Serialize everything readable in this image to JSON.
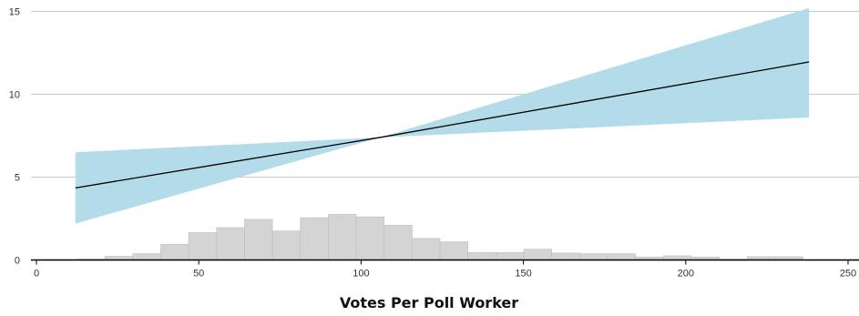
{
  "chart_data": {
    "type": "area",
    "xlabel": "Votes Per Poll Worker",
    "ylabel": "",
    "title": "",
    "xlim": [
      0,
      250
    ],
    "ylim": [
      0,
      15
    ],
    "x_ticks": [
      0,
      50,
      100,
      150,
      200,
      250
    ],
    "y_ticks": [
      0,
      5,
      10,
      15
    ],
    "grid": "horizontal",
    "colors": {
      "band": "#b3dbea",
      "line": "#000000",
      "histogram": "#d4d4d4",
      "histogram_edge": "#bdbdbd",
      "grid": "#c8c8c8",
      "axis": "#000000"
    },
    "series": [
      {
        "type": "line",
        "x": [
          12,
          106,
          238
        ],
        "y": [
          4.35,
          7.4,
          11.95
        ]
      },
      {
        "type": "band",
        "x": [
          12,
          106,
          238
        ],
        "lower": [
          2.2,
          7.4,
          8.6
        ],
        "upper": [
          6.5,
          7.4,
          15.2
        ]
      }
    ],
    "histogram": {
      "bin_width": 8.6,
      "bin_start": 12.5,
      "heights": [
        0.05,
        0.22,
        0.38,
        0.95,
        1.65,
        1.95,
        2.45,
        1.75,
        2.55,
        2.75,
        2.6,
        2.1,
        1.3,
        1.1,
        0.45,
        0.45,
        0.65,
        0.42,
        0.38,
        0.38,
        0.18,
        0.25,
        0.18,
        0.05,
        0.2,
        0.2
      ]
    }
  }
}
